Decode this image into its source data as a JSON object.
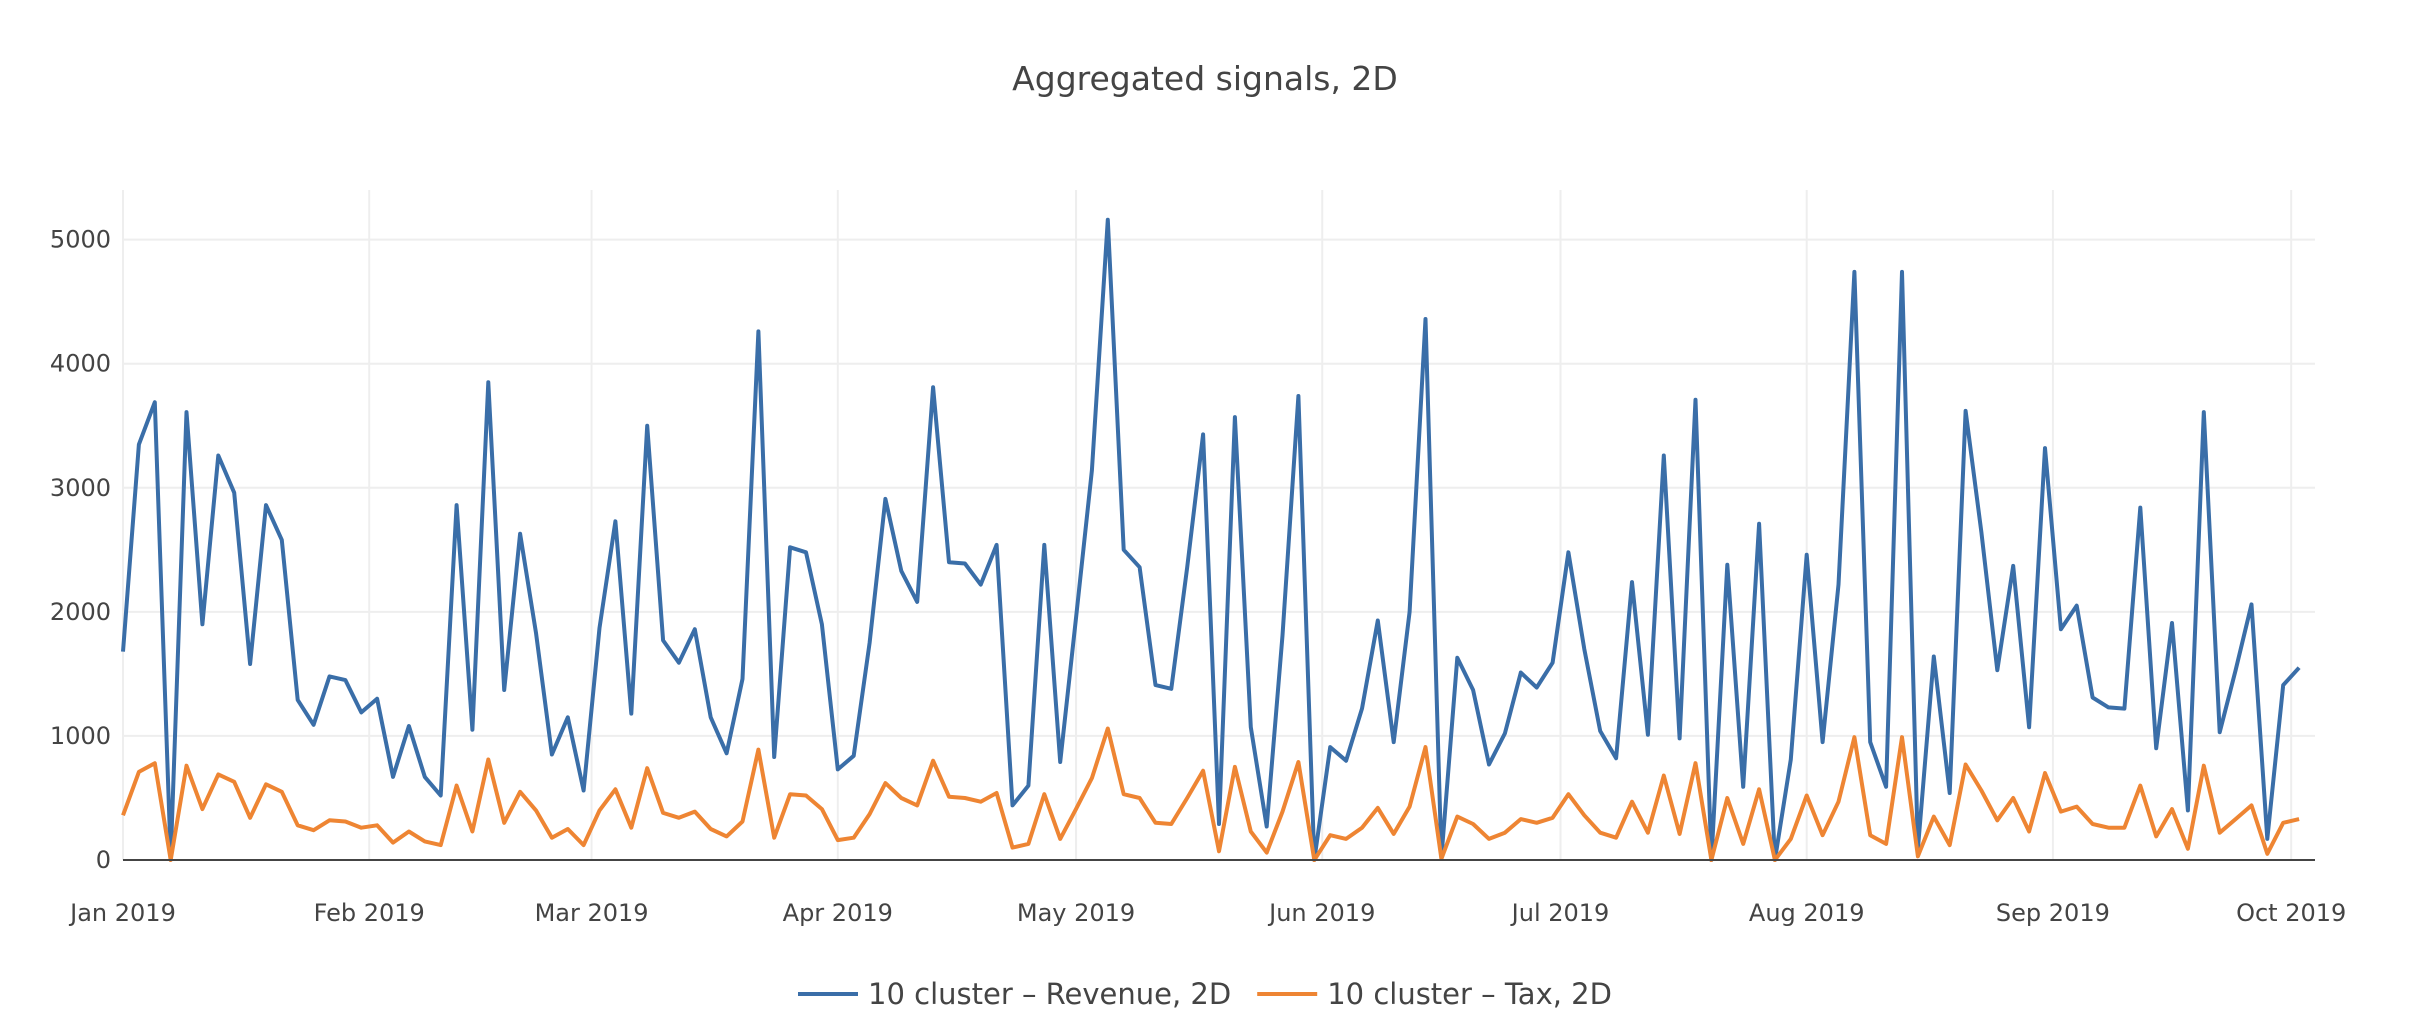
{
  "chart_data": {
    "type": "line",
    "title": "Aggregated signals, 2D",
    "xlabel": "",
    "ylabel": "",
    "xlim": [
      "2019-01-01",
      "2019-10-04"
    ],
    "ylim": [
      0,
      5400
    ],
    "yticks": [
      0,
      1000,
      2000,
      3000,
      4000,
      5000
    ],
    "xticks": [
      {
        "date": "2019-01-01",
        "label": "Jan 2019"
      },
      {
        "date": "2019-02-01",
        "label": "Feb 2019"
      },
      {
        "date": "2019-03-01",
        "label": "Mar 2019"
      },
      {
        "date": "2019-04-01",
        "label": "Apr 2019"
      },
      {
        "date": "2019-05-01",
        "label": "May 2019"
      },
      {
        "date": "2019-06-01",
        "label": "Jun 2019"
      },
      {
        "date": "2019-07-01",
        "label": "Jul 2019"
      },
      {
        "date": "2019-08-01",
        "label": "Aug 2019"
      },
      {
        "date": "2019-09-01",
        "label": "Sep 2019"
      },
      {
        "date": "2019-10-01",
        "label": "Oct 2019"
      }
    ],
    "grid": true,
    "legend_position": "bottom-center",
    "x_start": "2019-01-01",
    "x_step_days": 2,
    "series": [
      {
        "name": "10 cluster – Revenue, 2D",
        "color": "#3a6ea8",
        "values": [
          1680,
          3350,
          3690,
          20,
          3610,
          1900,
          3260,
          2960,
          1580,
          2860,
          2580,
          1290,
          1090,
          1480,
          1450,
          1190,
          1300,
          670,
          1080,
          670,
          520,
          2860,
          1050,
          3850,
          1370,
          2630,
          1830,
          850,
          1150,
          560,
          1870,
          2730,
          1180,
          3500,
          1770,
          1590,
          1860,
          1150,
          860,
          1460,
          4260,
          830,
          2520,
          2480,
          1900,
          730,
          840,
          1750,
          2910,
          2330,
          2080,
          3810,
          2400,
          2390,
          2220,
          2540,
          440,
          600,
          2540,
          790,
          1950,
          3140,
          5160,
          2500,
          2360,
          1410,
          1380,
          2360,
          3430,
          290,
          3570,
          1070,
          270,
          1810,
          3740,
          0,
          910,
          800,
          1220,
          1930,
          950,
          2000,
          4360,
          20,
          1630,
          1370,
          770,
          1020,
          1510,
          1390,
          1590,
          2480,
          1700,
          1040,
          820,
          2240,
          1010,
          3260,
          980,
          3710,
          0,
          2380,
          590,
          2710,
          0,
          810,
          2460,
          950,
          2220,
          4740,
          950,
          590,
          4740,
          90,
          1640,
          540,
          3620,
          2640,
          1530,
          2370,
          1070,
          3320,
          1860,
          2050,
          1310,
          1230,
          1220,
          2840,
          900,
          1910,
          400,
          3610,
          1030,
          1530,
          2060,
          170,
          1410,
          1550
        ]
      },
      {
        "name": "10 cluster – Tax, 2D",
        "color": "#ee8533",
        "values": [
          360,
          710,
          780,
          0,
          760,
          410,
          690,
          630,
          340,
          610,
          550,
          280,
          240,
          320,
          310,
          260,
          280,
          140,
          230,
          150,
          120,
          600,
          230,
          810,
          300,
          550,
          400,
          180,
          250,
          120,
          400,
          570,
          260,
          740,
          380,
          340,
          390,
          250,
          190,
          310,
          890,
          180,
          530,
          520,
          410,
          160,
          180,
          370,
          620,
          500,
          440,
          800,
          510,
          500,
          470,
          540,
          100,
          130,
          530,
          170,
          410,
          660,
          1060,
          530,
          500,
          300,
          290,
          500,
          720,
          70,
          750,
          230,
          60,
          390,
          790,
          0,
          200,
          170,
          260,
          420,
          210,
          430,
          910,
          10,
          350,
          290,
          170,
          220,
          330,
          300,
          340,
          530,
          360,
          220,
          180,
          470,
          220,
          680,
          210,
          780,
          0,
          500,
          130,
          570,
          0,
          170,
          520,
          200,
          470,
          990,
          200,
          130,
          990,
          30,
          350,
          120,
          770,
          560,
          320,
          500,
          230,
          700,
          390,
          430,
          290,
          260,
          260,
          600,
          190,
          410,
          90,
          760,
          220,
          330,
          440,
          50,
          300,
          330
        ]
      }
    ]
  }
}
